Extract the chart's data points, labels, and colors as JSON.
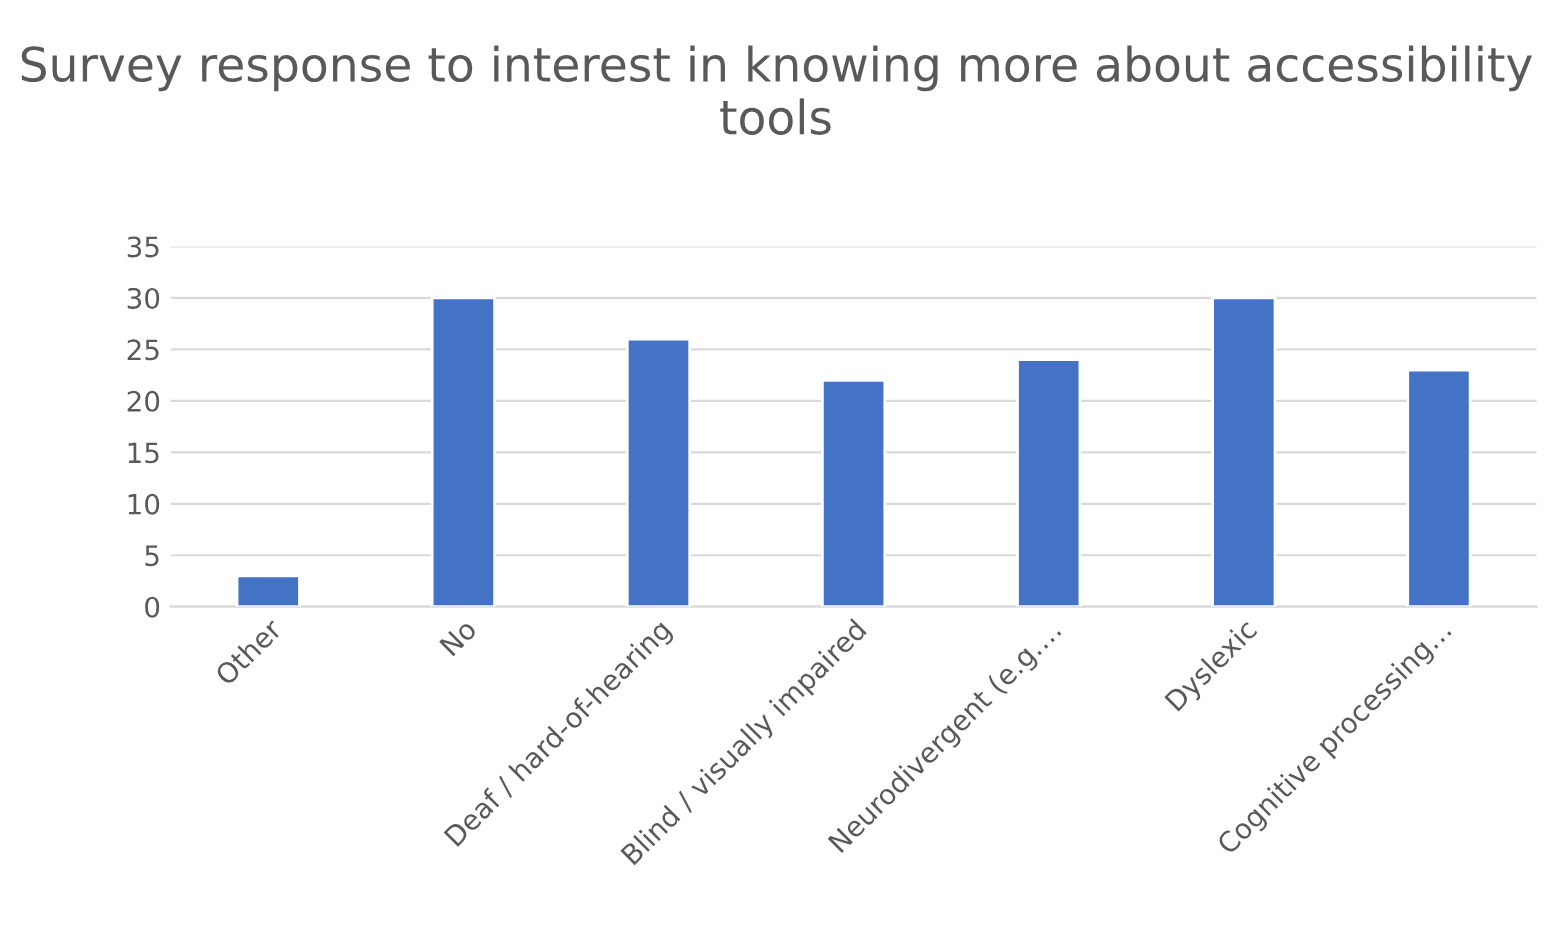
{
  "chart_data": {
    "type": "bar",
    "title": "Survey response to interest in knowing more about accessibility tools",
    "categories": [
      "Other",
      "No",
      "Deaf / hard-of-hearing",
      "Blind / visually impaired",
      "Neurodivergent (e.g.…",
      "Dyslexic",
      "Cognitive processing…"
    ],
    "values": [
      3,
      30,
      26,
      22,
      24,
      30,
      23
    ],
    "color": "#4472c4",
    "ylim": [
      0,
      35
    ],
    "yticks": [
      0,
      5,
      10,
      15,
      20,
      25,
      30,
      35
    ],
    "grid": "y",
    "legend": false
  }
}
